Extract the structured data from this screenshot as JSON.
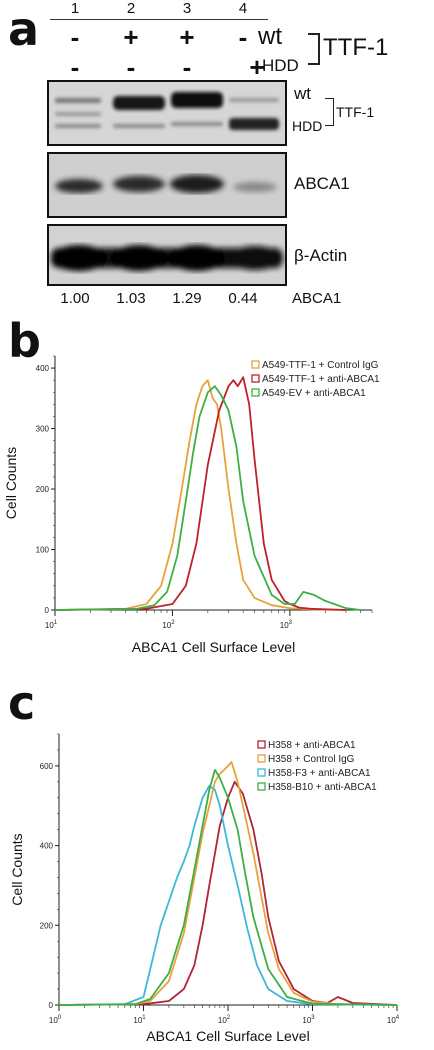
{
  "panel_a": {
    "letter": "a",
    "lane_numbers": [
      "1",
      "2",
      "3",
      "4"
    ],
    "row_wt": [
      "-",
      "+",
      "+",
      "-"
    ],
    "row_hdd": [
      "-",
      "-",
      "-",
      "+"
    ],
    "wt_label": "wt",
    "hdd_label": "HDD",
    "ttf1_label": "TTF-1",
    "blot_ttf1_wt": "wt",
    "blot_ttf1_hdd": "HDD",
    "blot_ttf1_label": "TTF-1",
    "blot_abca1_label": "ABCA1",
    "blot_actin_label": "β-Actin",
    "quant_values": [
      "1.00",
      "1.03",
      "1.29",
      "0.44"
    ],
    "quant_label": "ABCA1"
  },
  "chart_data": [
    {
      "type": "line",
      "panel": "b",
      "xlabel": "ABCA1 Cell Surface Level",
      "ylabel": "Cell Counts",
      "x_scale": "log",
      "xlim": [
        10,
        5000
      ],
      "ylim": [
        0,
        420
      ],
      "x_ticks": [
        {
          "value": 10,
          "base": "10",
          "exp": "1"
        },
        {
          "value": 100,
          "base": "10",
          "exp": "2"
        },
        {
          "value": 1000,
          "base": "10",
          "exp": "3"
        }
      ],
      "y_ticks": [
        0,
        100,
        200,
        300,
        400
      ],
      "legend_position": "top-right",
      "series": [
        {
          "name": "A549-TTF-1 + Control IgG",
          "color": "#e8a23c",
          "x": [
            10,
            40,
            60,
            80,
            100,
            120,
            140,
            160,
            180,
            200,
            220,
            240,
            260,
            300,
            350,
            400,
            500,
            700,
            1000,
            1500,
            3000
          ],
          "y": [
            0,
            2,
            10,
            40,
            110,
            200,
            280,
            340,
            370,
            380,
            350,
            340,
            300,
            200,
            110,
            50,
            20,
            8,
            3,
            1,
            0
          ]
        },
        {
          "name": "A549-TTF-1 + anti-ABCA1",
          "color": "#c0202a",
          "x": [
            10,
            60,
            100,
            130,
            160,
            200,
            250,
            300,
            330,
            360,
            400,
            450,
            500,
            600,
            700,
            900,
            1000,
            1200,
            1500,
            3000
          ],
          "y": [
            0,
            2,
            10,
            40,
            110,
            240,
            330,
            370,
            380,
            370,
            385,
            340,
            250,
            110,
            50,
            15,
            10,
            4,
            2,
            0
          ]
        },
        {
          "name": "A549-EV + anti-ABCA1",
          "color": "#3cb043",
          "x": [
            10,
            50,
            70,
            90,
            110,
            130,
            150,
            170,
            200,
            230,
            260,
            300,
            350,
            400,
            500,
            700,
            900,
            1100,
            1300,
            1600,
            2000,
            3000,
            4000
          ],
          "y": [
            0,
            2,
            8,
            30,
            90,
            180,
            260,
            320,
            360,
            370,
            355,
            330,
            270,
            180,
            90,
            25,
            10,
            10,
            30,
            25,
            15,
            3,
            0
          ]
        }
      ]
    },
    {
      "type": "line",
      "panel": "c",
      "xlabel": "ABCA1 Cell Surface Level",
      "ylabel": "Cell Counts",
      "x_scale": "log",
      "xlim": [
        1,
        10000
      ],
      "ylim": [
        0,
        680
      ],
      "x_ticks": [
        {
          "value": 1,
          "base": "10",
          "exp": "0"
        },
        {
          "value": 10,
          "base": "10",
          "exp": "1"
        },
        {
          "value": 100,
          "base": "10",
          "exp": "2"
        },
        {
          "value": 1000,
          "base": "10",
          "exp": "3"
        },
        {
          "value": 10000,
          "base": "10",
          "exp": "4"
        }
      ],
      "y_ticks": [
        0,
        200,
        400,
        600
      ],
      "legend_position": "top-right",
      "series": [
        {
          "name": "H358 + anti-ABCA1",
          "color": "#b0243a",
          "x": [
            1,
            10,
            20,
            30,
            40,
            50,
            60,
            70,
            80,
            100,
            120,
            150,
            200,
            250,
            300,
            400,
            600,
            1000,
            1500,
            2000,
            3000,
            10000
          ],
          "y": [
            0,
            2,
            10,
            40,
            100,
            200,
            300,
            380,
            450,
            520,
            560,
            530,
            440,
            330,
            220,
            110,
            40,
            10,
            5,
            20,
            5,
            0
          ]
        },
        {
          "name": "H358 + Control IgG",
          "color": "#e8a23c",
          "x": [
            1,
            8,
            12,
            20,
            30,
            40,
            50,
            60,
            70,
            80,
            90,
            100,
            110,
            130,
            150,
            200,
            250,
            300,
            400,
            600,
            1000,
            2000,
            10000
          ],
          "y": [
            0,
            2,
            10,
            60,
            180,
            320,
            430,
            500,
            560,
            580,
            590,
            600,
            610,
            560,
            500,
            380,
            270,
            180,
            90,
            30,
            8,
            2,
            0
          ]
        },
        {
          "name": "H358-F3 + anti-ABCA1",
          "color": "#3cb8d8",
          "x": [
            1,
            6,
            10,
            13,
            16,
            20,
            25,
            30,
            35,
            40,
            50,
            60,
            70,
            80,
            100,
            130,
            170,
            220,
            300,
            500,
            1000,
            10000
          ],
          "y": [
            0,
            2,
            20,
            120,
            200,
            260,
            320,
            360,
            400,
            450,
            520,
            550,
            540,
            500,
            400,
            300,
            190,
            100,
            40,
            10,
            2,
            0
          ]
        },
        {
          "name": "H358-B10 + anti-ABCA1",
          "color": "#3cb043",
          "x": [
            1,
            8,
            12,
            20,
            30,
            40,
            50,
            60,
            70,
            80,
            100,
            130,
            160,
            200,
            300,
            500,
            1000,
            10000
          ],
          "y": [
            0,
            2,
            15,
            80,
            200,
            340,
            450,
            540,
            590,
            570,
            520,
            440,
            330,
            220,
            90,
            20,
            3,
            0
          ]
        }
      ]
    }
  ],
  "panel_b_letter": "b",
  "panel_c_letter": "c"
}
